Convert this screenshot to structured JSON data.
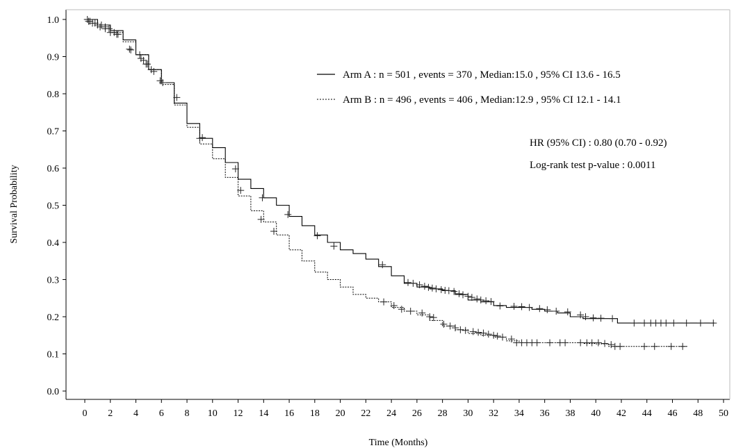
{
  "chart_data": {
    "type": "line",
    "subtype": "kaplan-meier",
    "title": "",
    "xlabel": "Time (Months)",
    "ylabel": "Survival Probability",
    "xlim": [
      0,
      50
    ],
    "ylim": [
      0.0,
      1.0
    ],
    "xticks": [
      "0",
      "2",
      "4",
      "6",
      "8",
      "10",
      "12",
      "14",
      "16",
      "18",
      "20",
      "22",
      "24",
      "26",
      "28",
      "30",
      "32",
      "34",
      "36",
      "38",
      "40",
      "42",
      "44",
      "46",
      "48",
      "50"
    ],
    "yticks": [
      "0.0",
      "0.1",
      "0.2",
      "0.3",
      "0.4",
      "0.5",
      "0.6",
      "0.7",
      "0.8",
      "0.9",
      "1.0"
    ],
    "grid": false,
    "legend_position": "top-right",
    "series": [
      {
        "name": "Arm A : n = 501 , events = 370 , Median:15.0 , 95% CI 13.6 - 16.5",
        "line_style": "solid",
        "color": "#000000",
        "x": [
          0,
          1,
          2,
          3,
          4,
          5,
          6,
          7,
          8,
          9,
          10,
          11,
          12,
          13,
          14,
          15,
          16,
          17,
          18,
          19,
          20,
          21,
          22,
          23,
          24,
          25,
          26,
          27,
          28,
          29,
          30,
          31,
          32,
          33,
          34,
          35,
          36,
          37,
          38,
          39,
          40,
          41,
          41.7,
          49.3
        ],
        "y": [
          1.0,
          0.985,
          0.97,
          0.945,
          0.905,
          0.865,
          0.83,
          0.775,
          0.72,
          0.68,
          0.655,
          0.615,
          0.57,
          0.545,
          0.52,
          0.5,
          0.47,
          0.445,
          0.42,
          0.4,
          0.38,
          0.37,
          0.355,
          0.335,
          0.31,
          0.29,
          0.28,
          0.275,
          0.27,
          0.26,
          0.245,
          0.24,
          0.23,
          0.225,
          0.225,
          0.22,
          0.215,
          0.21,
          0.2,
          0.195,
          0.195,
          0.195,
          0.183,
          0.183
        ],
        "censored_x": [
          0.2,
          0.4,
          0.6,
          1.0,
          1.3,
          1.6,
          1.9,
          2.3,
          2.6,
          3.5,
          4.3,
          4.6,
          4.9,
          5.2,
          5.9,
          7.2,
          9.2,
          11.8,
          13.9,
          15.9,
          18.2,
          19.5,
          23.3,
          25.3,
          25.7,
          26.2,
          26.6,
          26.9,
          27.2,
          27.5,
          27.9,
          28.2,
          28.5,
          28.9,
          29.3,
          29.6,
          30.0,
          30.3,
          30.7,
          31.0,
          31.4,
          31.8,
          32.5,
          33.6,
          34.2,
          34.8,
          35.6,
          36.2,
          36.9,
          37.8,
          38.8,
          39.2,
          39.8,
          40.4,
          41.3,
          43.0,
          43.8,
          44.3,
          44.7,
          45.1,
          45.5,
          46.1,
          47.1,
          48.2,
          49.2
        ],
        "censored_y": [
          1.0,
          0.995,
          0.99,
          0.985,
          0.985,
          0.98,
          0.975,
          0.965,
          0.96,
          0.92,
          0.905,
          0.89,
          0.88,
          0.865,
          0.835,
          0.79,
          0.682,
          0.598,
          0.52,
          0.475,
          0.418,
          0.39,
          0.34,
          0.292,
          0.29,
          0.286,
          0.282,
          0.279,
          0.277,
          0.275,
          0.273,
          0.271,
          0.27,
          0.268,
          0.262,
          0.259,
          0.255,
          0.252,
          0.248,
          0.245,
          0.243,
          0.241,
          0.229,
          0.228,
          0.227,
          0.225,
          0.222,
          0.219,
          0.215,
          0.213,
          0.205,
          0.2,
          0.197,
          0.196,
          0.195,
          0.183,
          0.183,
          0.183,
          0.183,
          0.183,
          0.183,
          0.183,
          0.183,
          0.183,
          0.183
        ]
      },
      {
        "name": "Arm B : n = 496 , events = 406 , Median:12.9 , 95% CI 12.1 - 14.1",
        "line_style": "dotted",
        "color": "#000000",
        "x": [
          0,
          1,
          2,
          3,
          4,
          5,
          6,
          7,
          8,
          9,
          10,
          11,
          12,
          13,
          14,
          15,
          16,
          17,
          18,
          19,
          20,
          21,
          22,
          23,
          24,
          25,
          26,
          27,
          28,
          29,
          30,
          31,
          32,
          33,
          34,
          35,
          36,
          37,
          38,
          39,
          40,
          41,
          42,
          47.2
        ],
        "y": [
          1.0,
          0.985,
          0.965,
          0.94,
          0.905,
          0.865,
          0.825,
          0.77,
          0.71,
          0.665,
          0.625,
          0.575,
          0.525,
          0.485,
          0.455,
          0.42,
          0.38,
          0.35,
          0.32,
          0.3,
          0.28,
          0.26,
          0.25,
          0.24,
          0.225,
          0.215,
          0.205,
          0.19,
          0.175,
          0.165,
          0.155,
          0.15,
          0.145,
          0.135,
          0.13,
          0.13,
          0.13,
          0.13,
          0.13,
          0.128,
          0.127,
          0.12,
          0.12,
          0.12
        ],
        "censored_x": [
          0.3,
          0.8,
          1.2,
          1.6,
          2.0,
          2.5,
          3.6,
          4.4,
          4.8,
          5.4,
          6.1,
          9.0,
          12.2,
          13.8,
          14.8,
          23.4,
          24.2,
          24.8,
          25.5,
          26.4,
          27.0,
          27.3,
          28.1,
          28.6,
          29.0,
          29.4,
          29.8,
          30.4,
          30.8,
          31.2,
          31.6,
          32.0,
          32.3,
          32.7,
          33.4,
          33.8,
          34.2,
          34.6,
          35.0,
          35.4,
          36.4,
          37.2,
          37.6,
          38.8,
          39.3,
          39.7,
          40.2,
          40.7,
          41.2,
          41.5,
          41.9,
          43.8,
          44.6,
          45.9,
          46.8
        ],
        "censored_y": [
          0.995,
          0.99,
          0.98,
          0.975,
          0.965,
          0.96,
          0.918,
          0.895,
          0.88,
          0.86,
          0.83,
          0.68,
          0.54,
          0.462,
          0.43,
          0.24,
          0.23,
          0.22,
          0.215,
          0.21,
          0.2,
          0.198,
          0.18,
          0.175,
          0.17,
          0.165,
          0.163,
          0.16,
          0.158,
          0.156,
          0.153,
          0.15,
          0.148,
          0.145,
          0.14,
          0.13,
          0.13,
          0.13,
          0.13,
          0.13,
          0.13,
          0.13,
          0.13,
          0.13,
          0.13,
          0.13,
          0.13,
          0.128,
          0.125,
          0.12,
          0.12,
          0.12,
          0.12,
          0.12,
          0.12
        ]
      }
    ],
    "annotations": [
      "HR (95% CI) : 0.80 (0.70 - 0.92)",
      "Log-rank test p-value : 0.0011"
    ]
  }
}
